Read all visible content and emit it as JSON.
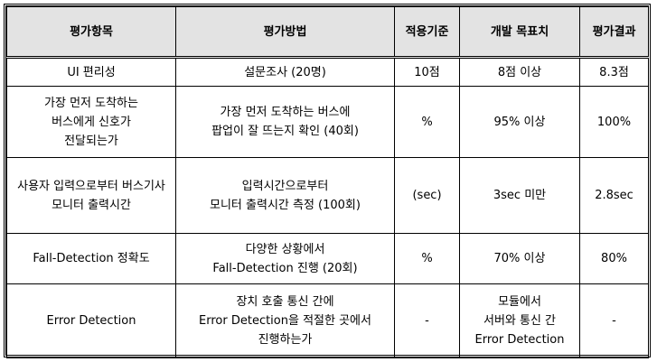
{
  "headers": [
    "평가항목",
    "평가방법",
    "적용기준",
    "개발 목표치",
    "평가결과"
  ],
  "rows": [
    [
      "UI 편리성",
      "설문조사 (20명)",
      "10점",
      "8점 이상",
      "8.3점"
    ],
    [
      "가장 먼저 도착하는\n버스에게 신호가\n전달되는가",
      "가장 먼저 도착하는 버스에\n팝업이 잘 뜨는지 확인 (40회)",
      "%",
      "95% 이상",
      "100%"
    ],
    [
      "사용자 입력으로부터 버스기사\n모니터 출력시간",
      "입력시간으로부터\n모니터 출력시간 측정 (100회)",
      "(sec)",
      "3sec 미만",
      "2.8sec"
    ],
    [
      "Fall-Detection 정확도",
      "다양한 상황에서\nFall-Detection 진행 (20회)",
      "%",
      "70% 이상",
      "80%"
    ],
    [
      "Error Detection",
      "장치 호출 통신 간에\nError Detection을 적절한 곳에서\n진행하는가",
      "-",
      "모듈에서\n서버와 통신 간\nError Detection",
      "-"
    ]
  ]
}
